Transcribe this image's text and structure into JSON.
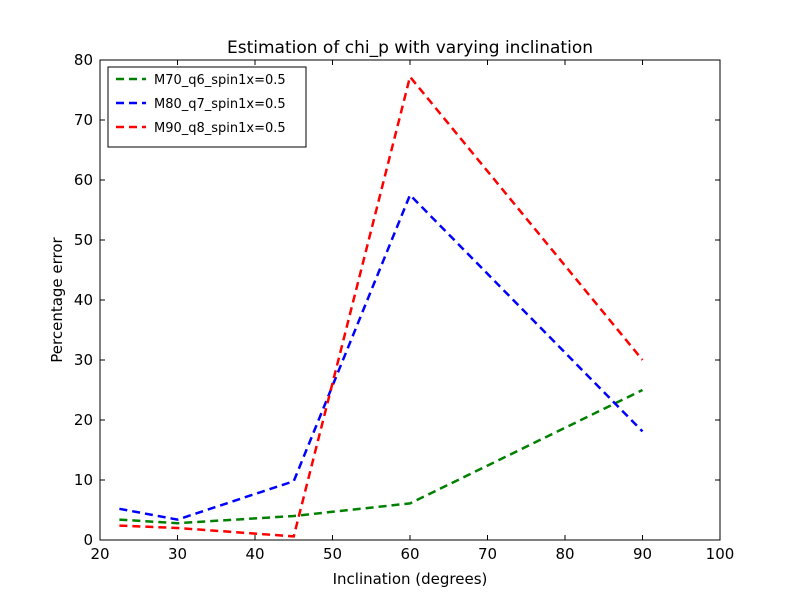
{
  "chart_data": {
    "type": "line",
    "title": "Estimation of chi_p with varying inclination",
    "xlabel": "Inclination (degrees)",
    "ylabel": "Percentage error",
    "xlim": [
      20,
      100
    ],
    "ylim": [
      0,
      80
    ],
    "xticks": [
      20,
      30,
      40,
      50,
      60,
      70,
      80,
      90,
      100
    ],
    "yticks": [
      0,
      10,
      20,
      30,
      40,
      50,
      60,
      70,
      80
    ],
    "grid": false,
    "legend_position": "top-left",
    "series": [
      {
        "name": "M70_q6_spin1x=0.5",
        "color": "#008000",
        "x": [
          22.5,
          30,
          45,
          60,
          90
        ],
        "y": [
          3.4,
          2.8,
          4.0,
          6.1,
          25.0
        ]
      },
      {
        "name": "M80_q7_spin1x=0.5",
        "color": "#0000ff",
        "x": [
          22.5,
          30,
          45,
          60,
          90
        ],
        "y": [
          5.2,
          3.4,
          9.8,
          57.5,
          18.1
        ]
      },
      {
        "name": "M90_q8_spin1x=0.5",
        "color": "#ff0000",
        "x": [
          22.5,
          30,
          45,
          60,
          90
        ],
        "y": [
          2.4,
          2.0,
          0.6,
          77.2,
          30.0
        ]
      }
    ]
  }
}
